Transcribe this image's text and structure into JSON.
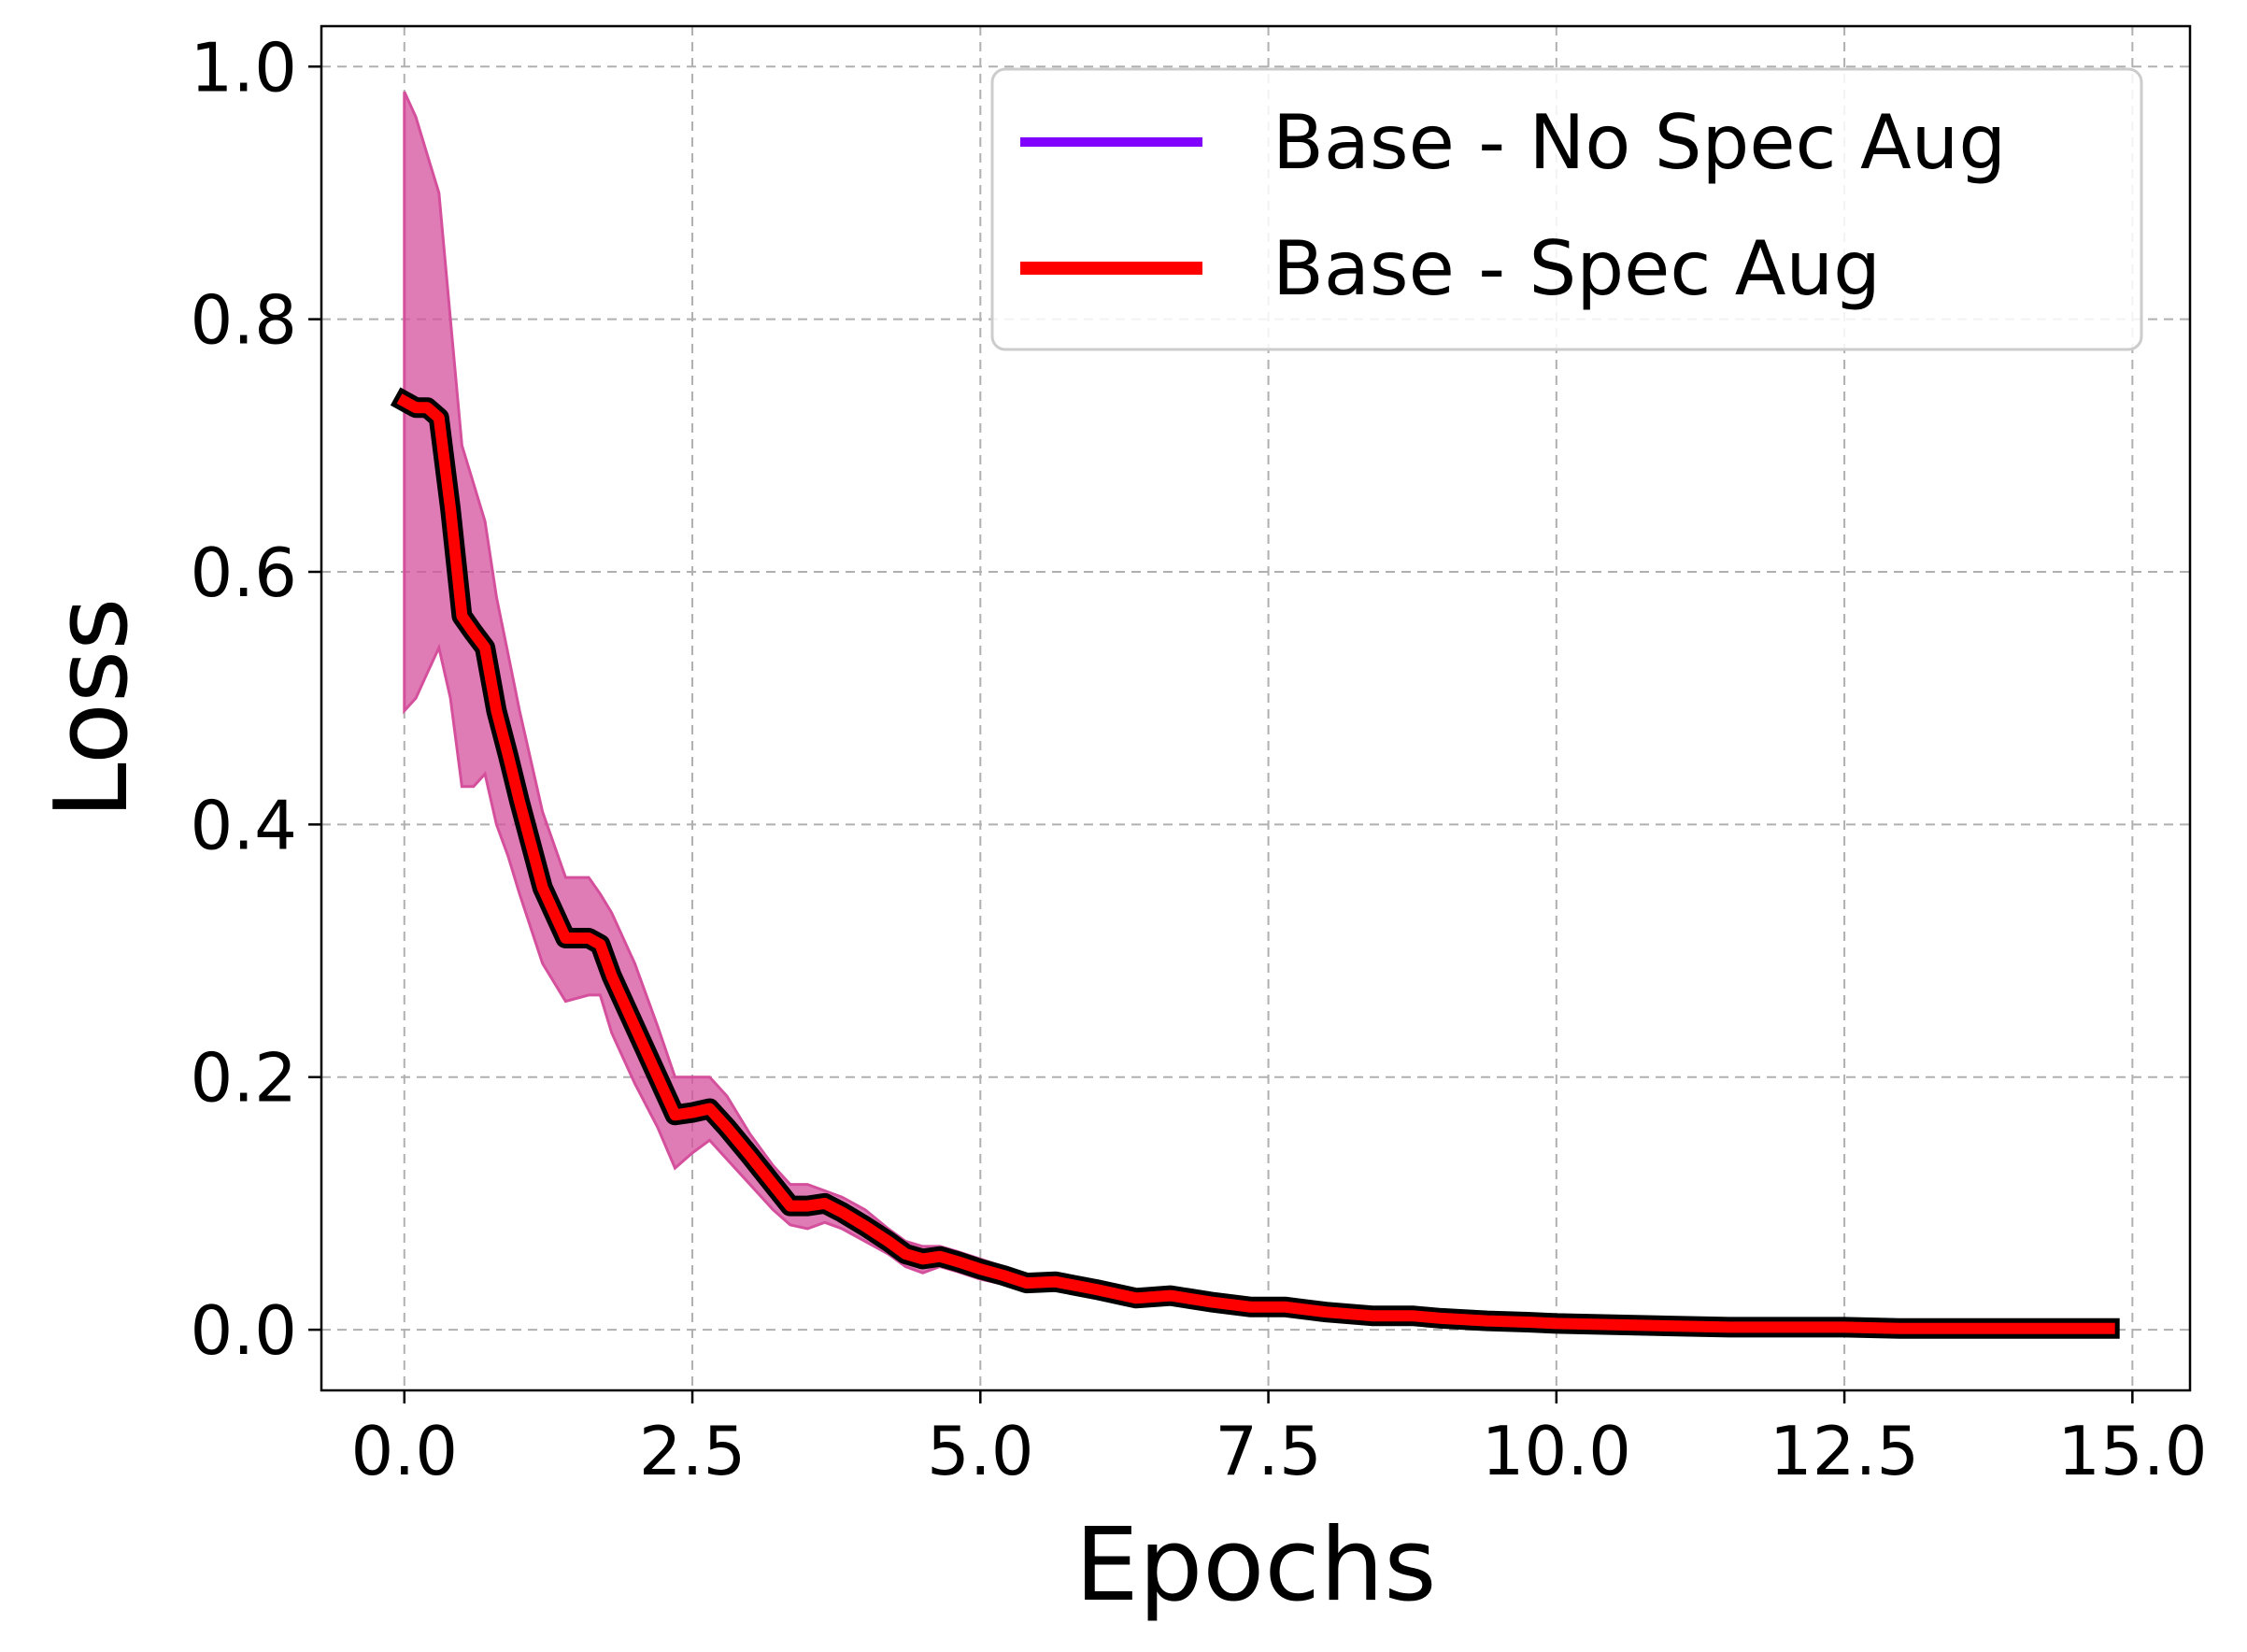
{
  "chart_data": {
    "type": "line",
    "xlabel": "Epochs",
    "ylabel": "Loss",
    "xlim": [
      -0.72,
      15.5
    ],
    "ylim": [
      -0.048,
      1.032
    ],
    "x_ticks": [
      0.0,
      2.5,
      5.0,
      7.5,
      10.0,
      12.5,
      15.0
    ],
    "x_tick_labels": [
      "0.0",
      "2.5",
      "5.0",
      "7.5",
      "10.0",
      "12.5",
      "15.0"
    ],
    "y_ticks": [
      0.0,
      0.2,
      0.4,
      0.6,
      0.8,
      1.0
    ],
    "y_tick_labels": [
      "0.0",
      "0.2",
      "0.4",
      "0.6",
      "0.8",
      "1.0"
    ],
    "grid": true,
    "legend_position": "top-right",
    "legend": [
      {
        "label": "Base - No Spec Aug",
        "color": "#7f00ff"
      },
      {
        "label": "Base - Spec Aug",
        "color": "#ff0000"
      }
    ],
    "band_color": "#d5509c",
    "series": [
      {
        "name": "Base - No Spec Aug",
        "color": "#7f00ff",
        "x": [
          0.0,
          0.1,
          0.2,
          0.3,
          0.4,
          0.5,
          0.6,
          0.7,
          0.8,
          0.9,
          1.0,
          1.2,
          1.4,
          1.6,
          1.7,
          1.8,
          2.0,
          2.2,
          2.35,
          2.5,
          2.65,
          2.8,
          3.0,
          3.2,
          3.35,
          3.5,
          3.65,
          3.8,
          4.0,
          4.2,
          4.35,
          4.5,
          4.65,
          4.8,
          5.0,
          5.2,
          5.4,
          5.65,
          6.0,
          6.35,
          6.65,
          7.0,
          7.35,
          7.65,
          8.0,
          8.4,
          8.75,
          9.0,
          9.4,
          9.75,
          10.0,
          10.5,
          11.0,
          11.5,
          12.0,
          12.5,
          13.0,
          13.5,
          14.0,
          14.5,
          14.8
        ],
        "values": [
          0.735,
          0.73,
          0.73,
          0.722,
          0.65,
          0.565,
          0.552,
          0.54,
          0.49,
          0.455,
          0.418,
          0.35,
          0.31,
          0.31,
          0.305,
          0.28,
          0.24,
          0.2,
          0.17,
          0.172,
          0.175,
          0.16,
          0.138,
          0.115,
          0.098,
          0.098,
          0.1,
          0.093,
          0.082,
          0.07,
          0.06,
          0.056,
          0.058,
          0.054,
          0.048,
          0.043,
          0.037,
          0.038,
          0.032,
          0.025,
          0.027,
          0.022,
          0.018,
          0.018,
          0.014,
          0.011,
          0.011,
          0.009,
          0.007,
          0.006,
          0.005,
          0.004,
          0.003,
          0.002,
          0.002,
          0.002,
          0.001,
          0.001,
          0.001,
          0.001,
          0.001
        ]
      },
      {
        "name": "Base - Spec Aug",
        "color": "#ff0000",
        "x": [
          0.0,
          0.1,
          0.2,
          0.3,
          0.4,
          0.5,
          0.6,
          0.7,
          0.8,
          0.9,
          1.0,
          1.2,
          1.4,
          1.6,
          1.7,
          1.8,
          2.0,
          2.2,
          2.35,
          2.5,
          2.65,
          2.8,
          3.0,
          3.2,
          3.35,
          3.5,
          3.65,
          3.8,
          4.0,
          4.2,
          4.35,
          4.5,
          4.65,
          4.8,
          5.0,
          5.2,
          5.4,
          5.65,
          6.0,
          6.35,
          6.65,
          7.0,
          7.35,
          7.65,
          8.0,
          8.4,
          8.75,
          9.0,
          9.4,
          9.75,
          10.0,
          10.5,
          11.0,
          11.5,
          12.0,
          12.5,
          13.0,
          13.5,
          14.0,
          14.5,
          14.8
        ],
        "values": [
          0.735,
          0.73,
          0.73,
          0.722,
          0.65,
          0.565,
          0.552,
          0.54,
          0.49,
          0.455,
          0.418,
          0.35,
          0.31,
          0.31,
          0.305,
          0.28,
          0.24,
          0.2,
          0.17,
          0.172,
          0.175,
          0.16,
          0.138,
          0.115,
          0.098,
          0.098,
          0.1,
          0.093,
          0.082,
          0.07,
          0.06,
          0.056,
          0.058,
          0.054,
          0.048,
          0.043,
          0.037,
          0.038,
          0.032,
          0.025,
          0.027,
          0.022,
          0.018,
          0.018,
          0.014,
          0.011,
          0.011,
          0.009,
          0.007,
          0.006,
          0.005,
          0.004,
          0.003,
          0.002,
          0.002,
          0.002,
          0.001,
          0.001,
          0.001,
          0.001,
          0.001
        ]
      }
    ],
    "band": {
      "x": [
        0.0,
        0.1,
        0.2,
        0.3,
        0.4,
        0.5,
        0.6,
        0.7,
        0.8,
        0.9,
        1.0,
        1.2,
        1.4,
        1.6,
        1.7,
        1.8,
        2.0,
        2.2,
        2.35,
        2.5,
        2.65,
        2.8,
        3.0,
        3.2,
        3.35,
        3.5,
        3.65,
        3.8,
        4.0,
        4.2,
        4.35,
        4.5,
        4.65,
        4.8,
        5.0,
        5.2,
        5.4,
        5.65,
        6.0,
        6.35,
        6.65,
        7.0,
        7.35,
        7.65,
        8.0,
        8.4,
        8.75,
        9.0,
        9.4,
        9.75,
        10.0,
        10.5,
        11.0,
        11.5,
        12.0,
        12.5,
        13.0,
        13.5,
        14.0,
        14.5,
        14.8
      ],
      "upper": [
        0.98,
        0.96,
        0.93,
        0.9,
        0.8,
        0.7,
        0.67,
        0.64,
        0.58,
        0.535,
        0.49,
        0.41,
        0.358,
        0.358,
        0.345,
        0.33,
        0.29,
        0.24,
        0.2,
        0.2,
        0.2,
        0.185,
        0.155,
        0.13,
        0.115,
        0.115,
        0.11,
        0.105,
        0.095,
        0.08,
        0.07,
        0.066,
        0.066,
        0.062,
        0.056,
        0.05,
        0.043,
        0.042,
        0.036,
        0.029,
        0.03,
        0.025,
        0.021,
        0.02,
        0.016,
        0.013,
        0.012,
        0.01,
        0.008,
        0.007,
        0.006,
        0.005,
        0.004,
        0.003,
        0.002,
        0.002,
        0.002,
        0.001,
        0.001,
        0.001,
        0.001
      ],
      "lower": [
        0.49,
        0.5,
        0.52,
        0.54,
        0.5,
        0.43,
        0.43,
        0.44,
        0.4,
        0.375,
        0.345,
        0.29,
        0.26,
        0.265,
        0.265,
        0.235,
        0.195,
        0.16,
        0.128,
        0.14,
        0.15,
        0.135,
        0.115,
        0.095,
        0.083,
        0.08,
        0.085,
        0.08,
        0.07,
        0.06,
        0.05,
        0.045,
        0.05,
        0.046,
        0.04,
        0.036,
        0.031,
        0.034,
        0.028,
        0.022,
        0.024,
        0.019,
        0.015,
        0.016,
        0.012,
        0.009,
        0.01,
        0.008,
        0.006,
        0.005,
        0.004,
        0.003,
        0.002,
        0.001,
        0.001,
        0.001,
        0.0,
        0.0,
        0.0,
        0.0,
        0.0
      ]
    }
  }
}
